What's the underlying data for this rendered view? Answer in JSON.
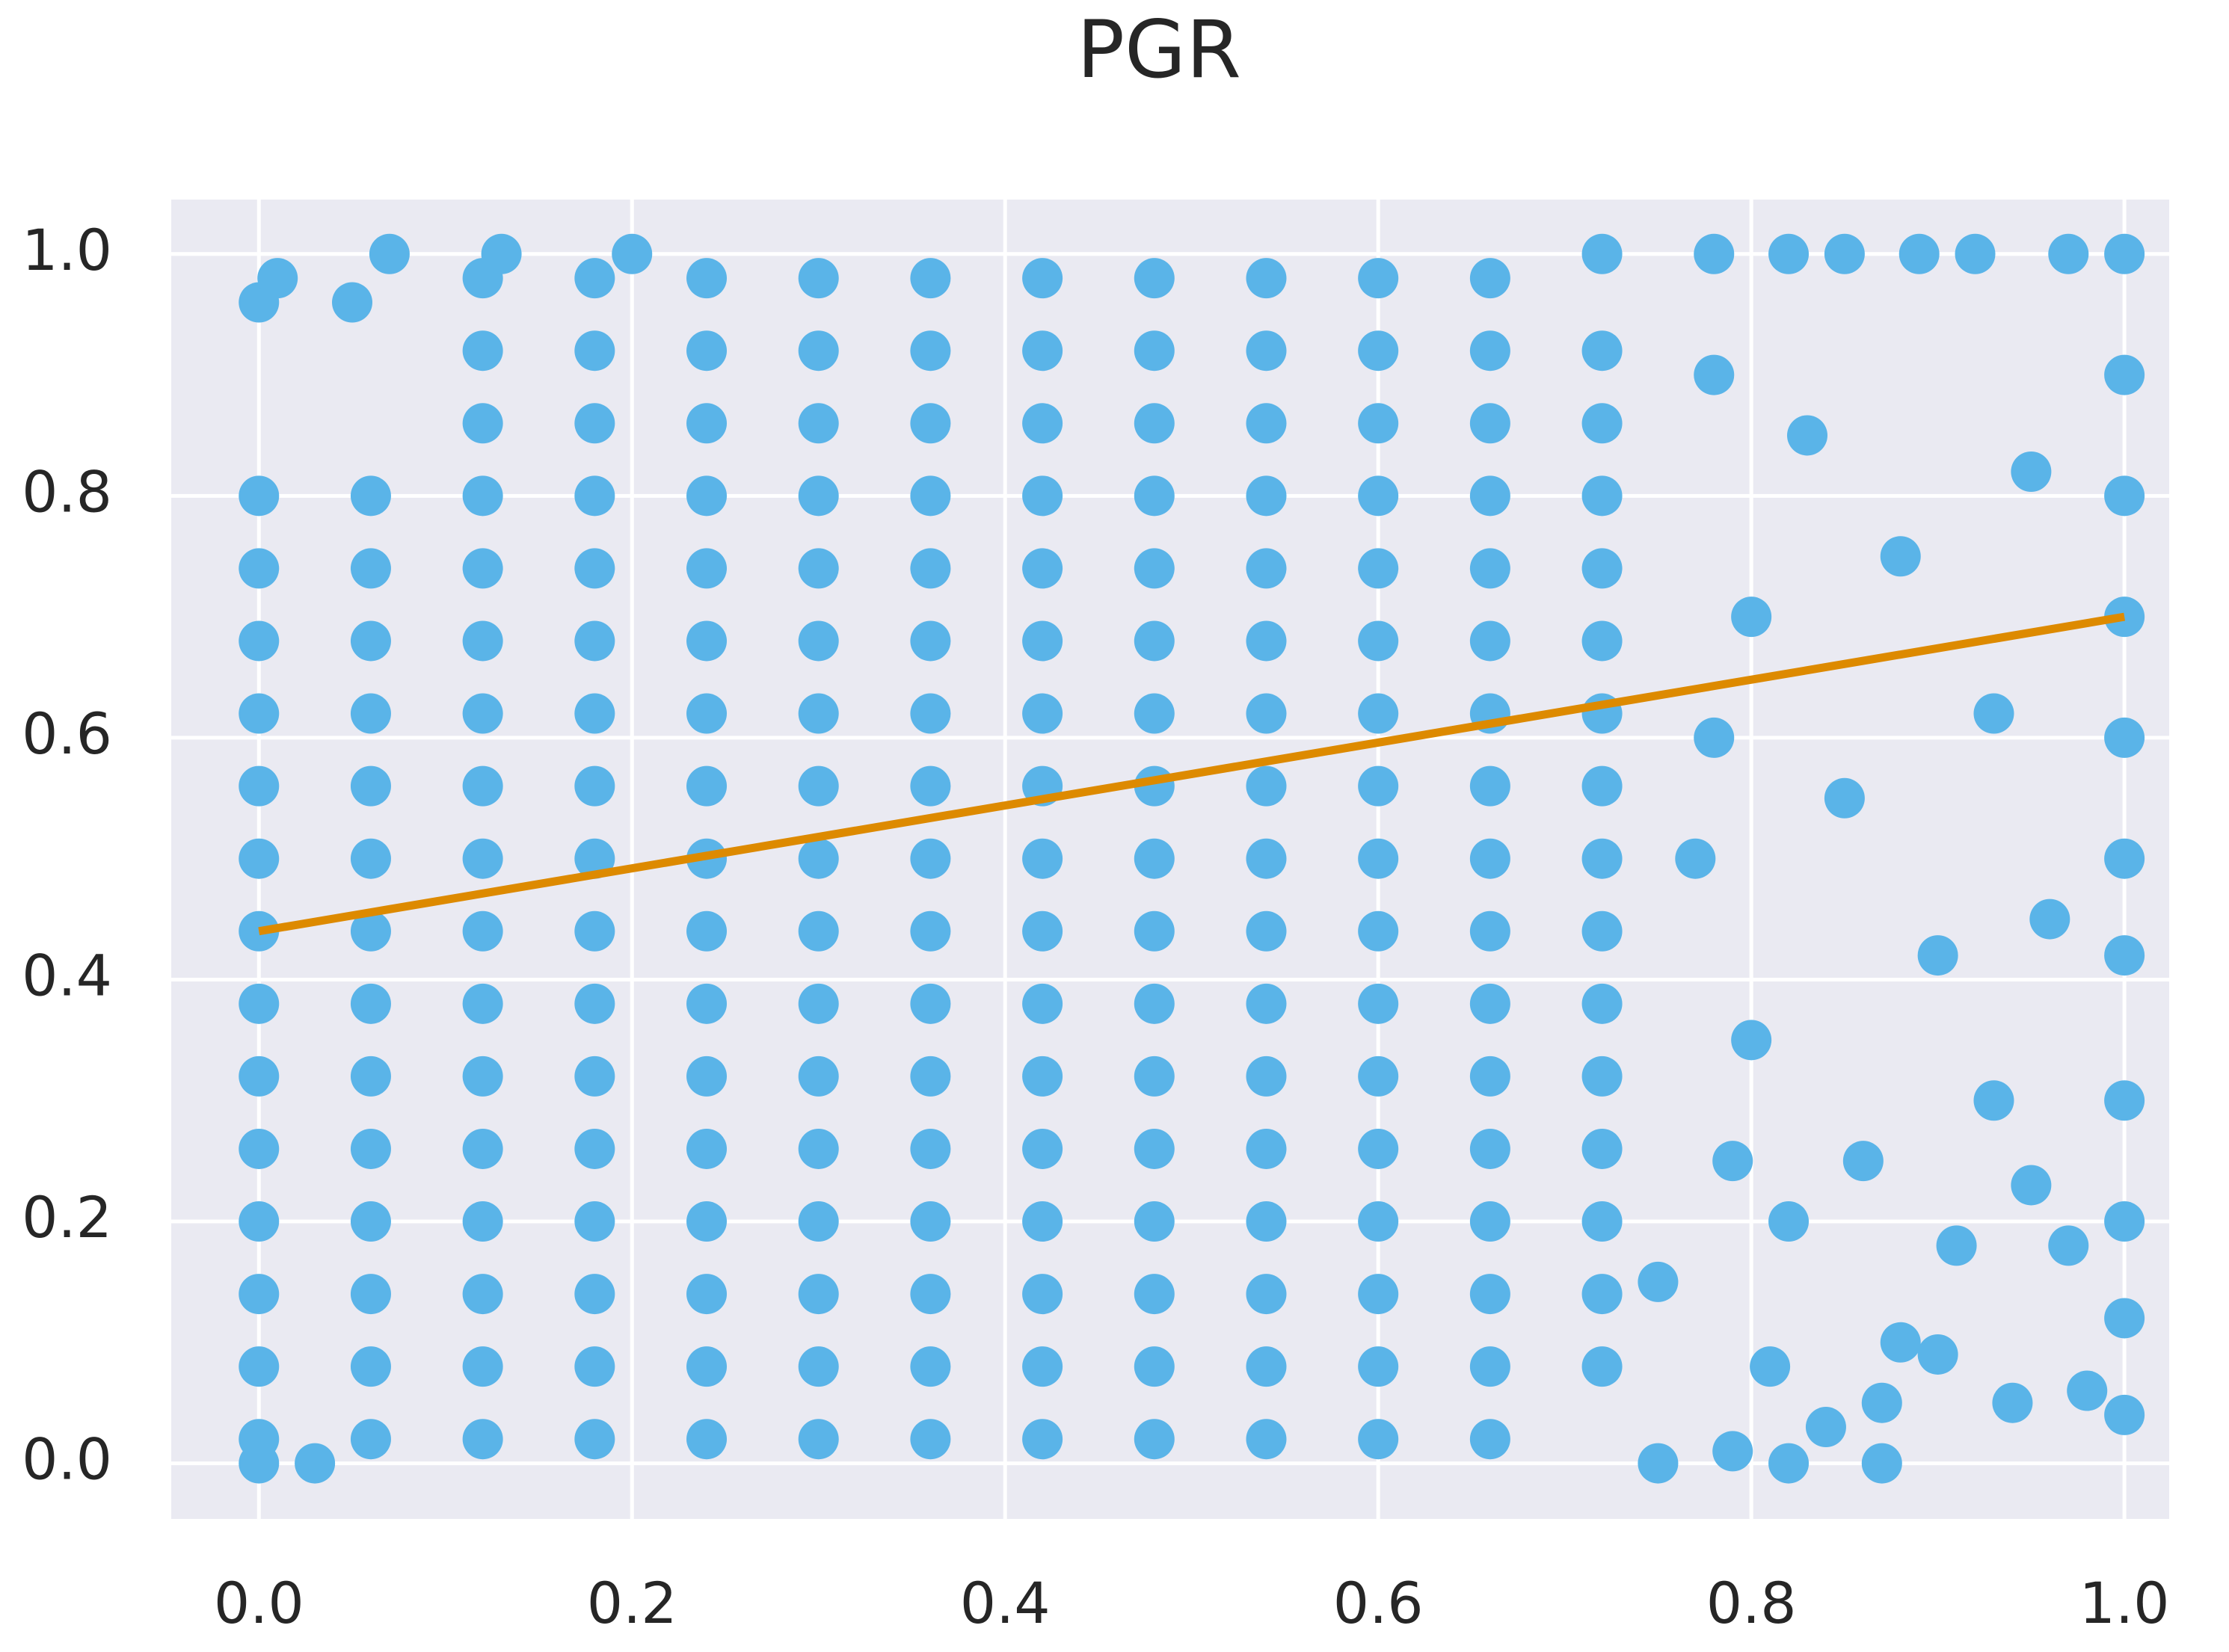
{
  "chart_data": {
    "type": "scatter",
    "title": "PGR",
    "color": "#5ab4e8",
    "marker_radius": 27,
    "x": [
      0,
      0,
      0,
      0,
      0,
      0,
      0,
      0,
      0,
      0,
      0,
      0,
      0,
      0,
      0.06,
      0.06,
      0.06,
      0.06,
      0.06,
      0.06,
      0.06,
      0.06,
      0.06,
      0.06,
      0.06,
      0.06,
      0.06,
      0.06,
      0.12,
      0.12,
      0.12,
      0.12,
      0.12,
      0.12,
      0.12,
      0.12,
      0.12,
      0.12,
      0.12,
      0.12,
      0.12,
      0.12,
      0.12,
      0.12,
      0.12,
      0.18,
      0.18,
      0.18,
      0.18,
      0.18,
      0.18,
      0.18,
      0.18,
      0.18,
      0.18,
      0.18,
      0.18,
      0.18,
      0.18,
      0.18,
      0.18,
      0.18,
      0.24,
      0.24,
      0.24,
      0.24,
      0.24,
      0.24,
      0.24,
      0.24,
      0.24,
      0.24,
      0.24,
      0.24,
      0.24,
      0.24,
      0.24,
      0.24,
      0.24,
      0.3,
      0.3,
      0.3,
      0.3,
      0.3,
      0.3,
      0.3,
      0.3,
      0.3,
      0.3,
      0.3,
      0.3,
      0.3,
      0.3,
      0.3,
      0.3,
      0.3,
      0.36,
      0.36,
      0.36,
      0.36,
      0.36,
      0.36,
      0.36,
      0.36,
      0.36,
      0.36,
      0.36,
      0.36,
      0.36,
      0.36,
      0.36,
      0.36,
      0.36,
      0.42,
      0.42,
      0.42,
      0.42,
      0.42,
      0.42,
      0.42,
      0.42,
      0.42,
      0.42,
      0.42,
      0.42,
      0.42,
      0.42,
      0.42,
      0.42,
      0.42,
      0.48,
      0.48,
      0.48,
      0.48,
      0.48,
      0.48,
      0.48,
      0.48,
      0.48,
      0.48,
      0.48,
      0.48,
      0.48,
      0.48,
      0.48,
      0.48,
      0.48,
      0.54,
      0.54,
      0.54,
      0.54,
      0.54,
      0.54,
      0.54,
      0.54,
      0.54,
      0.54,
      0.54,
      0.54,
      0.54,
      0.54,
      0.54,
      0.54,
      0.54,
      0.6,
      0.6,
      0.6,
      0.6,
      0.6,
      0.6,
      0.6,
      0.6,
      0.6,
      0.6,
      0.6,
      0.6,
      0.6,
      0.6,
      0.6,
      0.6,
      0.6,
      0.66,
      0.66,
      0.66,
      0.66,
      0.66,
      0.66,
      0.66,
      0.66,
      0.66,
      0.66,
      0.66,
      0.66,
      0.66,
      0.66,
      0.66,
      0.66,
      0.66,
      0.72,
      0.72,
      0.72,
      0.72,
      0.72,
      0.72,
      0.72,
      0.72,
      0.72,
      0.72,
      0.72,
      0.72,
      0.72,
      0.72,
      0.72,
      0,
      0.01,
      0.07,
      0.13,
      0.2,
      0.05,
      0,
      0.03,
      0.75,
      0.79,
      0.82,
      0.87,
      0.87,
      0.84,
      0.81,
      0.88,
      0.9,
      0.94,
      0.98,
      1,
      1,
      1,
      1,
      1,
      1,
      1,
      1,
      1,
      1,
      1,
      0.97,
      0.92,
      0.89,
      0.85,
      0.82,
      0.78,
      0.72,
      0.95,
      0.93,
      0.9,
      0.96,
      0.93,
      0.97,
      0.86,
      0.8,
      0.85,
      0.8,
      0.88,
      0.83,
      0.78,
      0.77,
      0.82,
      0.91,
      0.95,
      0.75,
      0.78,
      0.79
    ],
    "y": [
      0.02,
      0.08,
      0.14,
      0.2,
      0.26,
      0.32,
      0.38,
      0.44,
      0.5,
      0.56,
      0.62,
      0.68,
      0.74,
      0.8,
      0.02,
      0.08,
      0.14,
      0.2,
      0.26,
      0.32,
      0.38,
      0.44,
      0.5,
      0.56,
      0.62,
      0.68,
      0.74,
      0.8,
      0.02,
      0.08,
      0.14,
      0.2,
      0.26,
      0.32,
      0.38,
      0.44,
      0.5,
      0.56,
      0.62,
      0.68,
      0.74,
      0.8,
      0.86,
      0.92,
      0.98,
      0.02,
      0.08,
      0.14,
      0.2,
      0.26,
      0.32,
      0.38,
      0.44,
      0.5,
      0.56,
      0.62,
      0.68,
      0.74,
      0.8,
      0.86,
      0.92,
      0.98,
      0.02,
      0.08,
      0.14,
      0.2,
      0.26,
      0.32,
      0.38,
      0.44,
      0.5,
      0.56,
      0.62,
      0.68,
      0.74,
      0.8,
      0.86,
      0.92,
      0.98,
      0.02,
      0.08,
      0.14,
      0.2,
      0.26,
      0.32,
      0.38,
      0.44,
      0.5,
      0.56,
      0.62,
      0.68,
      0.74,
      0.8,
      0.86,
      0.92,
      0.98,
      0.02,
      0.08,
      0.14,
      0.2,
      0.26,
      0.32,
      0.38,
      0.44,
      0.5,
      0.56,
      0.62,
      0.68,
      0.74,
      0.8,
      0.86,
      0.92,
      0.98,
      0.02,
      0.08,
      0.14,
      0.2,
      0.26,
      0.32,
      0.38,
      0.44,
      0.5,
      0.56,
      0.62,
      0.68,
      0.74,
      0.8,
      0.86,
      0.92,
      0.98,
      0.02,
      0.08,
      0.14,
      0.2,
      0.26,
      0.32,
      0.38,
      0.44,
      0.5,
      0.56,
      0.62,
      0.68,
      0.74,
      0.8,
      0.86,
      0.92,
      0.98,
      0.02,
      0.08,
      0.14,
      0.2,
      0.26,
      0.32,
      0.38,
      0.44,
      0.5,
      0.56,
      0.62,
      0.68,
      0.74,
      0.8,
      0.86,
      0.92,
      0.98,
      0.02,
      0.08,
      0.14,
      0.2,
      0.26,
      0.32,
      0.38,
      0.44,
      0.5,
      0.56,
      0.62,
      0.68,
      0.74,
      0.8,
      0.86,
      0.92,
      0.98,
      0.02,
      0.08,
      0.14,
      0.2,
      0.26,
      0.32,
      0.38,
      0.44,
      0.5,
      0.56,
      0.62,
      0.68,
      0.74,
      0.8,
      0.86,
      0.92,
      0.98,
      0.08,
      0.14,
      0.2,
      0.26,
      0.32,
      0.38,
      0.44,
      0.5,
      0.56,
      0.62,
      0.68,
      0.74,
      0.8,
      0.86,
      0.92,
      0.96,
      0.98,
      1,
      1,
      1,
      0.96,
      0,
      0,
      0,
      0.01,
      0,
      0,
      0.05,
      0.03,
      0.08,
      0.1,
      0.09,
      0.05,
      0.06,
      0.04,
      0.12,
      0.2,
      0.3,
      0.42,
      0.5,
      0.6,
      0.7,
      0.8,
      0.9,
      1,
      1,
      1,
      1,
      1,
      1,
      1,
      1,
      0.82,
      0.62,
      0.42,
      0.45,
      0.3,
      0.18,
      0.25,
      0.35,
      0.55,
      0.7,
      0.75,
      0.85,
      0.9,
      0.5,
      0.2,
      0.18,
      0.23,
      0.15,
      0.6,
      0.25
    ],
    "trendline": {
      "x": [
        0,
        1
      ],
      "y": [
        0.44,
        0.7
      ],
      "color": "#dd8a00"
    },
    "xlim": [
      -0.047,
      1.024
    ],
    "ylim": [
      -0.046,
      1.045
    ],
    "xticks": [
      {
        "value": 0,
        "label": "0.0"
      },
      0.2,
      0.4,
      0.6,
      0.8,
      {
        "value": 1,
        "label": "1.0"
      }
    ],
    "yticks": [
      {
        "value": 0,
        "label": "0.0"
      },
      0.2,
      0.4,
      0.6,
      0.8,
      {
        "value": 1,
        "label": "1.0"
      }
    ],
    "grid": true
  }
}
